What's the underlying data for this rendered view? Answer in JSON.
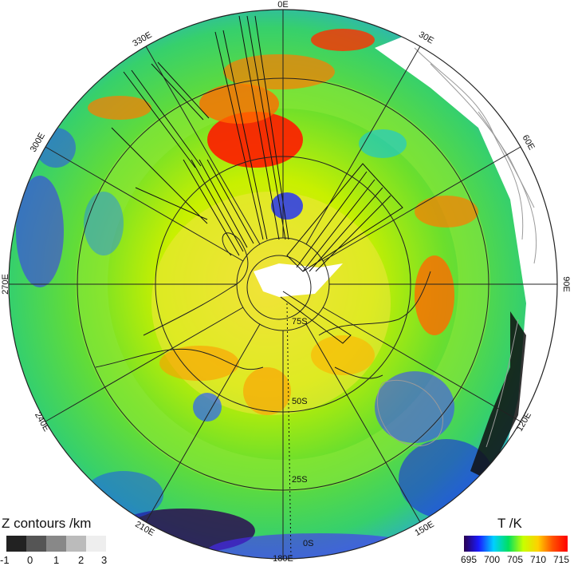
{
  "longitude_labels": [
    "0E",
    "30E",
    "60E",
    "90E",
    "120E",
    "150E",
    "180E",
    "210E",
    "240E",
    "270E",
    "300E",
    "330E"
  ],
  "latitude_labels": [
    "75S",
    "50S",
    "25S",
    "0S"
  ],
  "z_legend": {
    "title": "Z contours /km",
    "ticks": [
      "-1",
      "0",
      "1",
      "2",
      "3"
    ],
    "colors": [
      "#222222",
      "#555555",
      "#888888",
      "#bbbbbb",
      "#eeeeee"
    ]
  },
  "t_legend": {
    "title": "T /K",
    "ticks": [
      "695",
      "700",
      "705",
      "710",
      "715"
    ],
    "gradient": [
      "#2a0050",
      "#1a1aff",
      "#00d0ff",
      "#00e060",
      "#c8ff00",
      "#ffd000",
      "#ff5000",
      "#ff0000"
    ]
  },
  "map_colors": {
    "outline": "#000000",
    "contour_dark": "#222222",
    "contour_light": "#9a9a9a",
    "no_data": "#ffffff"
  }
}
